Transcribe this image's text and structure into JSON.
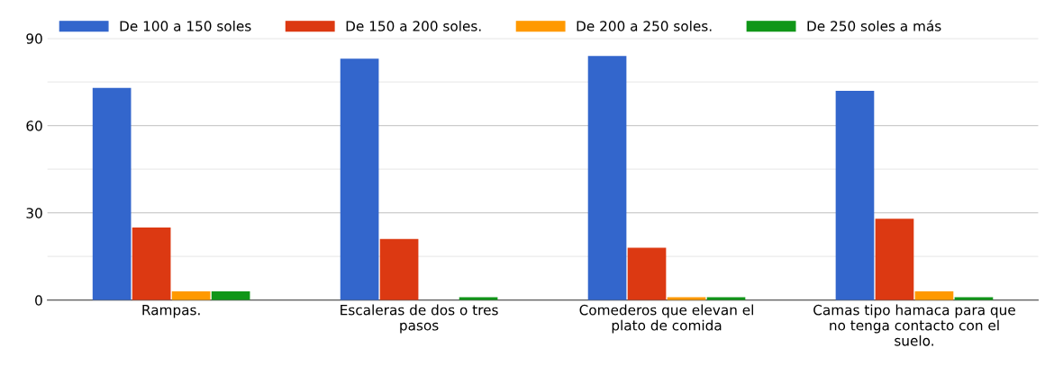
{
  "chart_data": {
    "type": "bar",
    "categories": [
      "Rampas.",
      "Escaleras de dos o tres pasos",
      "Comederos que elevan el plato de comida",
      "Camas tipo hamaca para que no tenga contacto con el suelo."
    ],
    "series": [
      {
        "name": "De 100 a 150 soles",
        "color": "#3366cc",
        "values": [
          73,
          83,
          84,
          72
        ]
      },
      {
        "name": "De 150 a 200 soles.",
        "color": "#dc3912",
        "values": [
          25,
          21,
          18,
          28
        ]
      },
      {
        "name": "De 200 a 250 soles.",
        "color": "#ff9900",
        "values": [
          3,
          0,
          1,
          3
        ]
      },
      {
        "name": "De 250 soles a más",
        "color": "#109618",
        "values": [
          3,
          1,
          1,
          1
        ]
      }
    ],
    "ylim": [
      0,
      90
    ],
    "yticks": [
      0,
      {
        "value": 15,
        "label": null
      },
      30,
      {
        "value": 45,
        "label": null
      },
      60,
      {
        "value": 75,
        "label": null
      },
      90
    ],
    "grid": "y",
    "legend": "top"
  }
}
